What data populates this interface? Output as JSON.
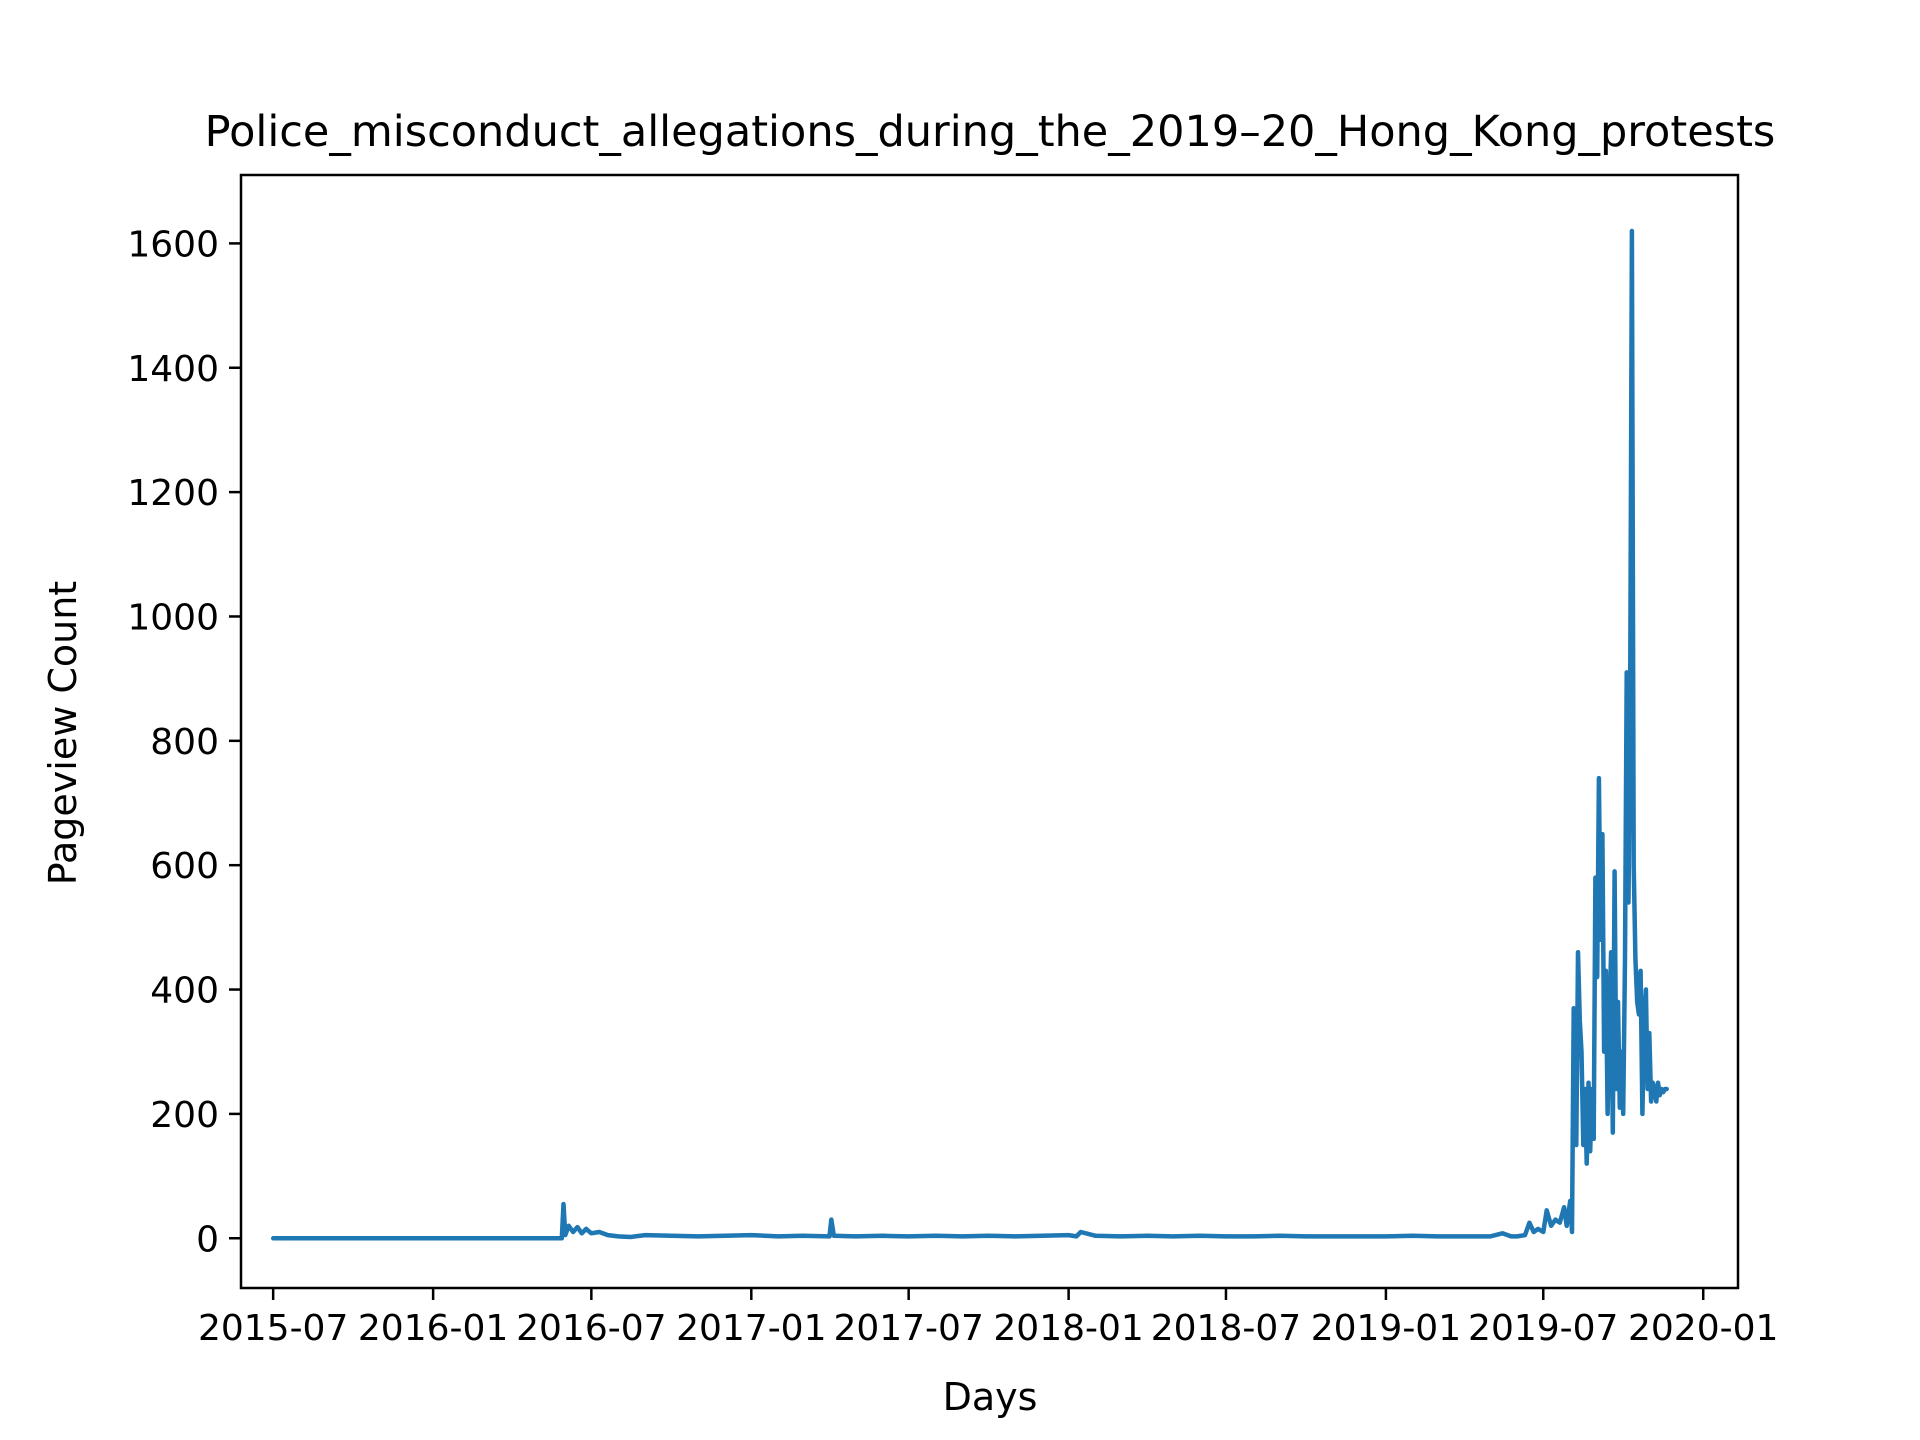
{
  "chart_data": {
    "type": "line",
    "title": "Police_misconduct_allegations_during_the_2019–20_Hong_Kong_protests",
    "xlabel": "Days",
    "ylabel": "Pageview Count",
    "ylim": [
      -80,
      1710
    ],
    "xlim": [
      "2015-05-25",
      "2020-02-10"
    ],
    "x_ticks": [
      "2015-07-01",
      "2016-01-01",
      "2016-07-01",
      "2017-01-01",
      "2017-07-01",
      "2018-01-01",
      "2018-07-01",
      "2019-01-01",
      "2019-07-01",
      "2020-01-01"
    ],
    "x_tick_labels": [
      "2015-07",
      "2016-01",
      "2016-07",
      "2017-01",
      "2017-07",
      "2018-01",
      "2018-07",
      "2019-01",
      "2019-07",
      "2020-01"
    ],
    "y_ticks": [
      0,
      200,
      400,
      600,
      800,
      1000,
      1200,
      1400,
      1600
    ],
    "y_tick_labels": [
      "0",
      "200",
      "400",
      "600",
      "800",
      "1000",
      "1200",
      "1400",
      "1600"
    ],
    "grid": false,
    "legend": "none",
    "color": "#1f77b4",
    "series": [
      {
        "x": [
          "2015-07-01",
          "2016-05-28",
          "2016-05-30",
          "2016-06-01",
          "2016-06-05",
          "2016-06-10",
          "2016-06-15",
          "2016-06-20",
          "2016-06-25",
          "2016-07-01",
          "2016-07-10",
          "2016-07-20",
          "2016-08-01",
          "2016-08-15",
          "2016-09-01",
          "2016-10-01",
          "2016-11-01",
          "2016-12-01",
          "2017-01-01",
          "2017-02-01",
          "2017-03-01",
          "2017-04-01",
          "2017-04-03",
          "2017-04-06",
          "2017-05-01",
          "2017-06-01",
          "2017-07-01",
          "2017-08-01",
          "2017-09-01",
          "2017-10-01",
          "2017-11-01",
          "2017-12-01",
          "2018-01-01",
          "2018-01-10",
          "2018-01-15",
          "2018-02-01",
          "2018-03-01",
          "2018-04-01",
          "2018-05-01",
          "2018-06-01",
          "2018-07-01",
          "2018-08-01",
          "2018-09-01",
          "2018-10-01",
          "2018-11-01",
          "2018-12-01",
          "2019-01-01",
          "2019-02-01",
          "2019-03-01",
          "2019-04-01",
          "2019-05-01",
          "2019-05-15",
          "2019-05-25",
          "2019-06-01",
          "2019-06-10",
          "2019-06-15",
          "2019-06-20",
          "2019-06-25",
          "2019-07-01",
          "2019-07-05",
          "2019-07-10",
          "2019-07-15",
          "2019-07-20",
          "2019-07-25",
          "2019-07-28",
          "2019-08-01",
          "2019-08-03",
          "2019-08-05",
          "2019-08-08",
          "2019-08-10",
          "2019-08-12",
          "2019-08-14",
          "2019-08-16",
          "2019-08-18",
          "2019-08-20",
          "2019-08-22",
          "2019-08-24",
          "2019-08-26",
          "2019-08-28",
          "2019-08-30",
          "2019-09-01",
          "2019-09-03",
          "2019-09-05",
          "2019-09-07",
          "2019-09-09",
          "2019-09-11",
          "2019-09-13",
          "2019-09-15",
          "2019-09-17",
          "2019-09-19",
          "2019-09-21",
          "2019-09-23",
          "2019-09-25",
          "2019-09-27",
          "2019-09-29",
          "2019-10-01",
          "2019-10-03",
          "2019-10-05",
          "2019-10-07",
          "2019-10-09",
          "2019-10-11",
          "2019-10-13",
          "2019-10-15",
          "2019-10-17",
          "2019-10-19",
          "2019-10-21",
          "2019-10-23",
          "2019-10-25",
          "2019-10-27",
          "2019-10-29",
          "2019-10-31",
          "2019-11-02",
          "2019-11-04",
          "2019-11-06",
          "2019-11-08",
          "2019-11-10",
          "2019-11-12",
          "2019-11-14",
          "2019-11-16",
          "2019-11-18",
          "2019-11-20"
        ],
        "values": [
          0,
          0,
          55,
          5,
          20,
          10,
          18,
          8,
          15,
          8,
          10,
          5,
          3,
          2,
          5,
          4,
          3,
          4,
          5,
          3,
          4,
          3,
          30,
          4,
          3,
          4,
          3,
          4,
          3,
          4,
          3,
          4,
          5,
          3,
          10,
          4,
          3,
          4,
          3,
          4,
          3,
          3,
          4,
          3,
          3,
          3,
          3,
          4,
          3,
          3,
          3,
          8,
          3,
          3,
          5,
          25,
          10,
          15,
          10,
          45,
          20,
          30,
          25,
          50,
          20,
          60,
          10,
          370,
          150,
          460,
          350,
          300,
          150,
          240,
          120,
          250,
          140,
          240,
          160,
          580,
          420,
          740,
          480,
          650,
          300,
          430,
          200,
          350,
          460,
          170,
          590,
          240,
          380,
          210,
          300,
          200,
          450,
          910,
          540,
          880,
          1620,
          600,
          450,
          380,
          360,
          430,
          200,
          350,
          400,
          240,
          330,
          220,
          250,
          240,
          220,
          250,
          230,
          240,
          235,
          240,
          240
        ]
      }
    ]
  }
}
